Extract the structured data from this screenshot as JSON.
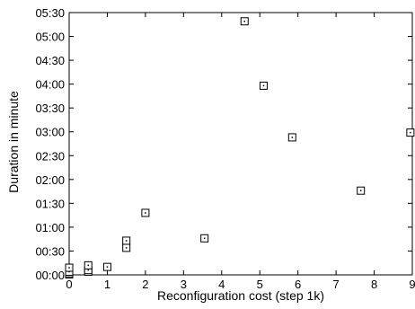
{
  "chart_data": {
    "type": "scatter",
    "xlabel": "Reconfiguration cost (step 1k)",
    "ylabel": "Duration in minute",
    "xlim": [
      0,
      9
    ],
    "ylim": [
      0,
      330
    ],
    "x_ticks": [
      {
        "value": 0,
        "label": "0"
      },
      {
        "value": 1,
        "label": "1"
      },
      {
        "value": 2,
        "label": "2"
      },
      {
        "value": 3,
        "label": "3"
      },
      {
        "value": 4,
        "label": "4"
      },
      {
        "value": 5,
        "label": "5"
      },
      {
        "value": 6,
        "label": "6"
      },
      {
        "value": 7,
        "label": "7"
      },
      {
        "value": 8,
        "label": "8"
      },
      {
        "value": 9,
        "label": "9"
      }
    ],
    "y_ticks": [
      {
        "value": 0,
        "label": "00:00"
      },
      {
        "value": 30,
        "label": "00:30"
      },
      {
        "value": 60,
        "label": "01:00"
      },
      {
        "value": 90,
        "label": "01:30"
      },
      {
        "value": 120,
        "label": "02:00"
      },
      {
        "value": 150,
        "label": "02:30"
      },
      {
        "value": 180,
        "label": "03:00"
      },
      {
        "value": 210,
        "label": "03:30"
      },
      {
        "value": 240,
        "label": "04:00"
      },
      {
        "value": 270,
        "label": "04:30"
      },
      {
        "value": 300,
        "label": "05:00"
      },
      {
        "value": 330,
        "label": "05:30"
      }
    ],
    "marker": "square-with-dot",
    "grid": false,
    "points": [
      {
        "x": 0.0,
        "y": 0.5
      },
      {
        "x": 0.0,
        "y": 2
      },
      {
        "x": 0.0,
        "y": 4
      },
      {
        "x": 0.0,
        "y": 9
      },
      {
        "x": 0.5,
        "y": 4
      },
      {
        "x": 0.5,
        "y": 6
      },
      {
        "x": 0.5,
        "y": 12
      },
      {
        "x": 1.0,
        "y": 10
      },
      {
        "x": 1.5,
        "y": 34
      },
      {
        "x": 1.5,
        "y": 43
      },
      {
        "x": 2.0,
        "y": 78
      },
      {
        "x": 3.55,
        "y": 46
      },
      {
        "x": 4.6,
        "y": 319
      },
      {
        "x": 5.1,
        "y": 238
      },
      {
        "x": 5.85,
        "y": 173
      },
      {
        "x": 7.65,
        "y": 106
      },
      {
        "x": 8.95,
        "y": 179
      }
    ]
  }
}
